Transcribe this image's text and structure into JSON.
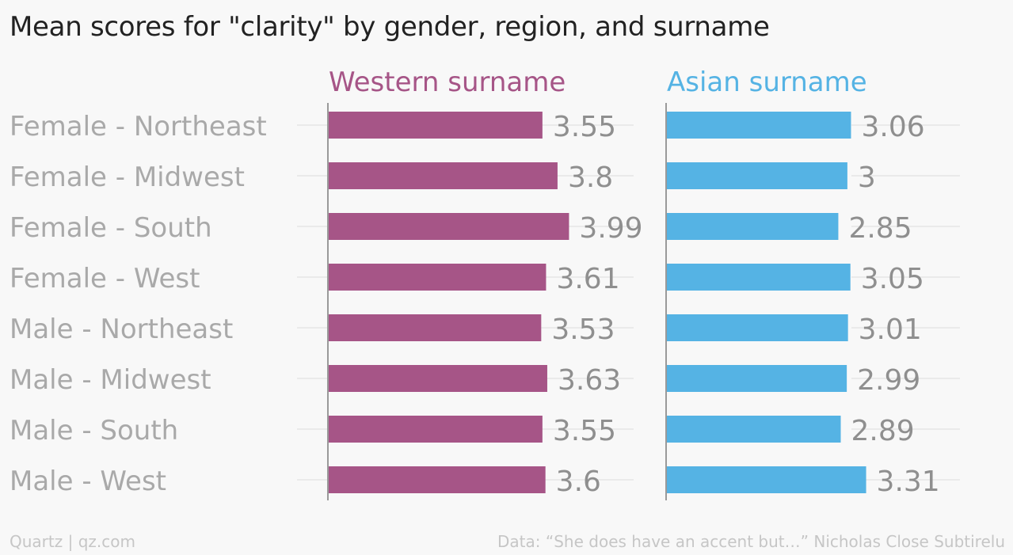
{
  "title": "Mean scores for \"clarity\" by gender, region, and surname",
  "footer": {
    "source_left": "Quartz | qz.com",
    "source_right": "Data: “She does have an accent but…” Nicholas Close Subtirelu"
  },
  "colors": {
    "western": "#a65587",
    "asian": "#55b3e4",
    "category_text": "#a9a9a9",
    "value_text": "#8f8f8f",
    "grid": "#e6e6e6",
    "axis": "#9a9a9a"
  },
  "chart_data": {
    "type": "bar",
    "orientation": "horizontal",
    "layout": "small-multiples",
    "categories": [
      "Female - Northeast",
      "Female - Midwest",
      "Female - South",
      "Female - West",
      "Male - Northeast",
      "Male - Midwest",
      "Male - South",
      "Male - West"
    ],
    "series": [
      {
        "name": "Western surname",
        "values": [
          3.55,
          3.8,
          3.99,
          3.61,
          3.53,
          3.63,
          3.55,
          3.6
        ]
      },
      {
        "name": "Asian surname",
        "values": [
          3.06,
          3,
          2.85,
          3.05,
          3.01,
          2.99,
          2.89,
          3.31
        ]
      }
    ],
    "value_labels": [
      [
        "3.55",
        "3.8",
        "3.99",
        "3.61",
        "3.53",
        "3.63",
        "3.55",
        "3.6"
      ],
      [
        "3.06",
        "3",
        "2.85",
        "3.05",
        "3.01",
        "2.99",
        "2.89",
        "3.31"
      ]
    ],
    "xlim": [
      0,
      4
    ],
    "grid": true,
    "legend": "panel-titles"
  }
}
